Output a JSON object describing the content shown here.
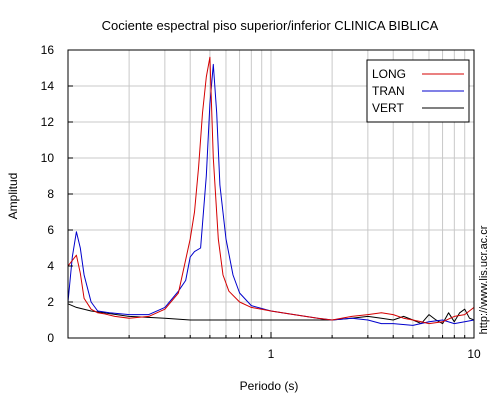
{
  "chart_data": {
    "type": "line",
    "title": "Cociente espectral piso superior/inferior  CLINICA BIBLICA",
    "xlabel": "Periodo (s)",
    "ylabel": "Amplitud",
    "side_label": "http://www.lis.ucr.ac.cr",
    "x_scale": "log",
    "xlim": [
      0.1,
      10
    ],
    "ylim": [
      0,
      16
    ],
    "grid": true,
    "legend_position": "top-right",
    "x_ticks": [
      {
        "value": 1,
        "label": "1"
      },
      {
        "value": 10,
        "label": "10"
      }
    ],
    "y_ticks": [
      {
        "value": 0,
        "label": "0"
      },
      {
        "value": 2,
        "label": "2"
      },
      {
        "value": 4,
        "label": "4"
      },
      {
        "value": 6,
        "label": "6"
      },
      {
        "value": 8,
        "label": "8"
      },
      {
        "value": 10,
        "label": "10"
      },
      {
        "value": 12,
        "label": "12"
      },
      {
        "value": 14,
        "label": "14"
      },
      {
        "value": 16,
        "label": "16"
      }
    ],
    "series": [
      {
        "name": "LONG",
        "color": "#d40000",
        "x": [
          0.1,
          0.11,
          0.115,
          0.12,
          0.13,
          0.14,
          0.15,
          0.17,
          0.2,
          0.25,
          0.3,
          0.35,
          0.4,
          0.42,
          0.44,
          0.46,
          0.48,
          0.5,
          0.52,
          0.55,
          0.58,
          0.62,
          0.7,
          0.8,
          1.0,
          1.3,
          1.7,
          2.0,
          2.5,
          3.0,
          3.5,
          4.0,
          4.5,
          5.0,
          5.5,
          6.0,
          7.0,
          8.0,
          9.0,
          10.0
        ],
        "y": [
          4.0,
          4.6,
          3.6,
          2.2,
          1.6,
          1.4,
          1.35,
          1.2,
          1.1,
          1.2,
          1.6,
          2.5,
          5.5,
          7.0,
          9.5,
          12.5,
          14.5,
          15.6,
          10.0,
          5.5,
          3.5,
          2.6,
          2.0,
          1.7,
          1.5,
          1.3,
          1.1,
          1.0,
          1.2,
          1.3,
          1.4,
          1.3,
          1.1,
          1.0,
          0.9,
          0.8,
          0.9,
          1.2,
          1.3,
          1.7
        ]
      },
      {
        "name": "TRAN",
        "color": "#0000cc",
        "x": [
          0.1,
          0.105,
          0.11,
          0.115,
          0.12,
          0.13,
          0.14,
          0.16,
          0.2,
          0.25,
          0.3,
          0.35,
          0.38,
          0.4,
          0.42,
          0.45,
          0.48,
          0.5,
          0.52,
          0.54,
          0.56,
          0.6,
          0.65,
          0.7,
          0.8,
          1.0,
          1.3,
          1.7,
          2.0,
          2.5,
          3.0,
          3.5,
          4.0,
          5.0,
          6.0,
          7.0,
          8.0,
          9.0,
          10.0
        ],
        "y": [
          2.0,
          4.5,
          5.9,
          5.0,
          3.5,
          2.0,
          1.5,
          1.4,
          1.3,
          1.3,
          1.7,
          2.6,
          3.2,
          4.5,
          4.8,
          5.0,
          9.0,
          13.0,
          15.2,
          12.5,
          8.5,
          5.5,
          3.5,
          2.5,
          1.8,
          1.5,
          1.3,
          1.1,
          1.0,
          1.1,
          1.0,
          0.8,
          0.8,
          0.7,
          0.9,
          1.0,
          0.8,
          0.9,
          1.0
        ]
      },
      {
        "name": "VERT",
        "color": "#000000",
        "x": [
          0.1,
          0.11,
          0.13,
          0.15,
          0.2,
          0.3,
          0.4,
          0.5,
          0.6,
          0.8,
          1.0,
          1.5,
          2.0,
          2.5,
          3.0,
          3.5,
          4.0,
          4.5,
          5.0,
          5.5,
          6.0,
          6.5,
          7.0,
          7.5,
          8.0,
          8.5,
          9.0,
          9.5,
          10.0
        ],
        "y": [
          1.9,
          1.7,
          1.5,
          1.4,
          1.2,
          1.1,
          1.0,
          1.0,
          1.0,
          1.0,
          1.0,
          1.0,
          1.0,
          1.1,
          1.2,
          1.1,
          1.0,
          1.2,
          1.0,
          0.8,
          1.3,
          1.0,
          0.8,
          1.4,
          0.9,
          1.4,
          1.6,
          1.1,
          1.0
        ]
      }
    ]
  }
}
